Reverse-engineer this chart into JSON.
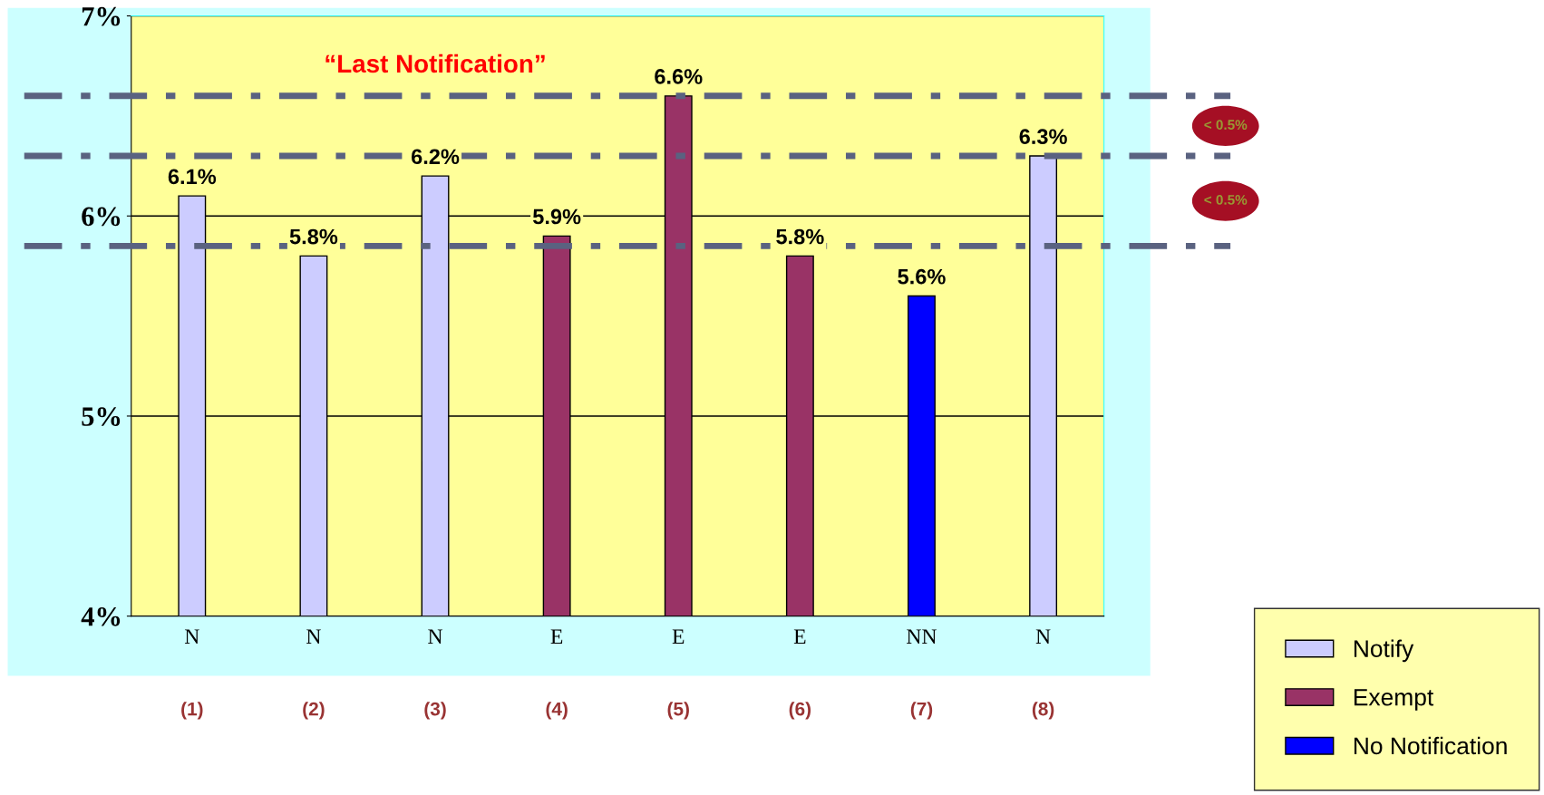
{
  "chart_data": {
    "type": "bar",
    "categories": [
      "N",
      "N",
      "N",
      "E",
      "E",
      "E",
      "NN",
      "N"
    ],
    "series": [
      {
        "name": "Notify",
        "color": "#ccccff",
        "values": [
          6.1,
          5.8,
          6.2,
          null,
          null,
          null,
          null,
          6.3
        ]
      },
      {
        "name": "Exempt",
        "color": "#993366",
        "values": [
          null,
          null,
          null,
          5.9,
          6.6,
          5.8,
          null,
          null
        ]
      },
      {
        "name": "No Notification",
        "color": "#0000ff",
        "values": [
          null,
          null,
          null,
          null,
          null,
          null,
          5.6,
          null
        ]
      }
    ],
    "ylim": [
      4,
      7
    ],
    "yticks": [
      {
        "value": 4,
        "label": "4%"
      },
      {
        "value": 5,
        "label": "5%"
      },
      {
        "value": 6,
        "label": "6%"
      },
      {
        "value": 7,
        "label": "7%"
      }
    ],
    "value_labels": [
      [
        "6.1%",
        "5.8%",
        "6.2%",
        null,
        null,
        null,
        null,
        "6.3%"
      ],
      [
        null,
        null,
        null,
        "5.9%",
        "6.6%",
        "5.8%",
        null,
        null
      ],
      [
        null,
        null,
        null,
        null,
        null,
        null,
        "5.6%",
        null
      ]
    ],
    "ref_lines": [
      {
        "axis": "y",
        "value": 6.6,
        "color": "#5a6280",
        "line_style": "dashdot"
      },
      {
        "axis": "y",
        "value": 6.3,
        "color": "#5a6280",
        "line_style": "dashdot"
      },
      {
        "axis": "y",
        "value": 5.85,
        "color": "#5a6280",
        "line_style": "dashdot"
      }
    ],
    "annotations": [
      "(1)",
      "(2)",
      "(3)",
      "(4)",
      "(5)",
      "(6)",
      "(7)",
      "(8)",
      "“Last Notification”",
      "< 0.5%",
      "< 0.5%"
    ],
    "grid": "y",
    "legend": "bottom right"
  }
}
